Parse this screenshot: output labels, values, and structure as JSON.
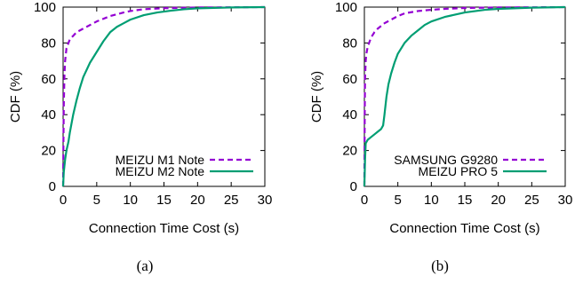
{
  "chart_data": [
    {
      "type": "line",
      "caption": "(a)",
      "xlabel": "Connection Time Cost (s)",
      "ylabel": "CDF (%)",
      "xlim": [
        0,
        30
      ],
      "ylim": [
        0,
        100
      ],
      "xticks": [
        "0",
        "5",
        "10",
        "15",
        "20",
        "25",
        "30"
      ],
      "yticks": [
        "0",
        "20",
        "40",
        "60",
        "80",
        "100"
      ],
      "legend_position": "bottom-right",
      "series": [
        {
          "name": "MEIZU M1 Note",
          "color": "#9400d3",
          "dash": "dashed",
          "x": [
            0,
            0.05,
            0.1,
            0.2,
            0.3,
            0.5,
            0.8,
            1,
            1.5,
            2,
            3,
            4,
            5,
            6,
            7,
            8,
            9,
            10,
            12,
            15,
            20,
            30
          ],
          "y": [
            0,
            25,
            45,
            62,
            70,
            77,
            80,
            82,
            84,
            86,
            88,
            90,
            92,
            93.5,
            95,
            96,
            97,
            97.8,
            98.8,
            99.4,
            99.8,
            100
          ]
        },
        {
          "name": "MEIZU M2 Note",
          "color": "#009e73",
          "dash": "solid",
          "x": [
            0,
            0.1,
            0.3,
            0.5,
            0.8,
            1,
            1.5,
            2,
            2.5,
            3,
            4,
            5,
            6,
            7,
            8,
            9,
            10,
            12,
            14,
            16,
            18,
            20,
            25,
            30
          ],
          "y": [
            0,
            8,
            15,
            20,
            25,
            30,
            40,
            48,
            55,
            61,
            69,
            75,
            81,
            86,
            89,
            91,
            93,
            95.5,
            97,
            98,
            98.8,
            99.3,
            99.8,
            100
          ]
        }
      ]
    },
    {
      "type": "line",
      "caption": "(b)",
      "xlabel": "Connection Time Cost (s)",
      "ylabel": "CDF (%)",
      "xlim": [
        0,
        30
      ],
      "ylim": [
        0,
        100
      ],
      "xticks": [
        "0",
        "5",
        "10",
        "15",
        "20",
        "25",
        "30"
      ],
      "yticks": [
        "0",
        "20",
        "40",
        "60",
        "80",
        "100"
      ],
      "legend_position": "bottom-right",
      "series": [
        {
          "name": "SAMSUNG G9280",
          "color": "#9400d3",
          "dash": "dashed",
          "x": [
            0,
            0.05,
            0.1,
            0.2,
            0.3,
            0.5,
            0.8,
            1,
            1.5,
            2,
            3,
            4,
            5,
            6,
            8,
            10,
            12,
            15,
            20,
            30
          ],
          "y": [
            0,
            40,
            60,
            70,
            74,
            78,
            81,
            83,
            86,
            88,
            91,
            93,
            95,
            96.5,
            97.8,
            98.5,
            99,
            99.5,
            99.8,
            100
          ]
        },
        {
          "name": "MEIZU PRO 5",
          "color": "#009e73",
          "dash": "solid",
          "x": [
            0,
            0.1,
            0.2,
            0.5,
            1,
            1.5,
            2,
            2.5,
            2.8,
            3,
            3.3,
            3.6,
            4,
            4.5,
            5,
            6,
            7,
            8,
            9,
            10,
            12,
            15,
            18,
            20,
            25,
            30
          ],
          "y": [
            0,
            15,
            24,
            26,
            27.5,
            29,
            30.5,
            32,
            34,
            40,
            50,
            57,
            63,
            69,
            74,
            80,
            84,
            87,
            90,
            92,
            94.5,
            97,
            98.5,
            99,
            99.7,
            100
          ]
        }
      ]
    }
  ]
}
